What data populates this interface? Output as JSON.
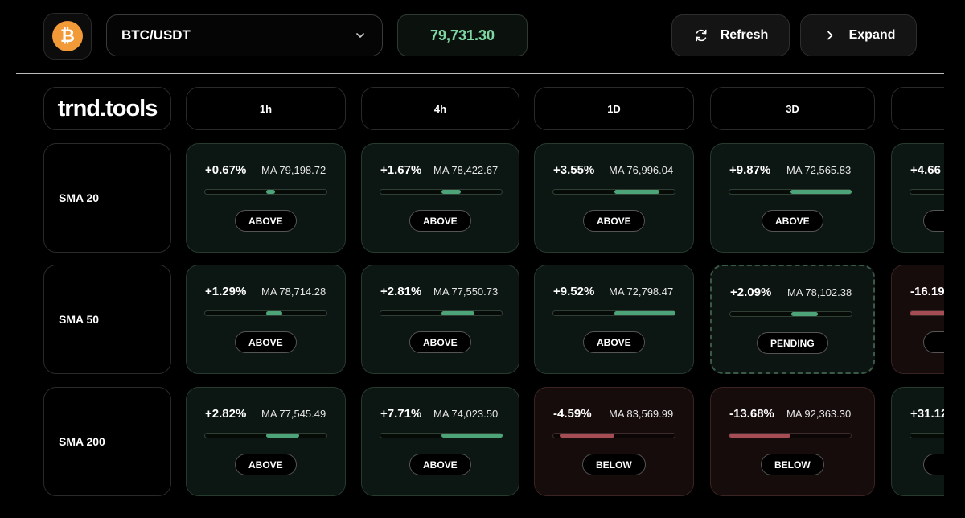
{
  "header": {
    "coin_icon": "bitcoin-icon",
    "coin_symbol": "₿",
    "pair": "BTC/USDT",
    "price": "79,731.30",
    "refresh_label": "Refresh",
    "expand_label": "Expand"
  },
  "brand": "trnd.tools",
  "timeframes": [
    "1h",
    "4h",
    "1D",
    "3D",
    ""
  ],
  "rows": [
    {
      "label": "SMA 20",
      "cells": [
        {
          "pct": "+0.67%",
          "ma": "MA 79,198.72",
          "status": "ABOVE",
          "dir": "pos",
          "bar_from": 0.5,
          "bar_to": 0.57
        },
        {
          "pct": "+1.67%",
          "ma": "MA 78,422.67",
          "status": "ABOVE",
          "dir": "pos",
          "bar_from": 0.5,
          "bar_to": 0.66
        },
        {
          "pct": "+3.55%",
          "ma": "MA 76,996.04",
          "status": "ABOVE",
          "dir": "pos",
          "bar_from": 0.5,
          "bar_to": 0.87
        },
        {
          "pct": "+9.87%",
          "ma": "MA 72,565.83",
          "status": "ABOVE",
          "dir": "pos",
          "bar_from": 0.5,
          "bar_to": 1.0
        },
        {
          "pct": "+4.66",
          "ma": "",
          "status": "",
          "dir": "pos",
          "bar_from": 0.5,
          "bar_to": 1.0
        }
      ]
    },
    {
      "label": "SMA 50",
      "cells": [
        {
          "pct": "+1.29%",
          "ma": "MA 78,714.28",
          "status": "ABOVE",
          "dir": "pos",
          "bar_from": 0.5,
          "bar_to": 0.63
        },
        {
          "pct": "+2.81%",
          "ma": "MA 77,550.73",
          "status": "ABOVE",
          "dir": "pos",
          "bar_from": 0.5,
          "bar_to": 0.77
        },
        {
          "pct": "+9.52%",
          "ma": "MA 72,798.47",
          "status": "ABOVE",
          "dir": "pos",
          "bar_from": 0.5,
          "bar_to": 1.0
        },
        {
          "pct": "+2.09%",
          "ma": "MA 78,102.38",
          "status": "PENDING",
          "dir": "pending",
          "bar_from": 0.5,
          "bar_to": 0.72
        },
        {
          "pct": "-16.19",
          "ma": "",
          "status": "",
          "dir": "neg",
          "bar_from": 0.0,
          "bar_to": 0.5
        }
      ]
    },
    {
      "label": "SMA 200",
      "cells": [
        {
          "pct": "+2.82%",
          "ma": "MA 77,545.49",
          "status": "ABOVE",
          "dir": "pos",
          "bar_from": 0.5,
          "bar_to": 0.77
        },
        {
          "pct": "+7.71%",
          "ma": "MA 74,023.50",
          "status": "ABOVE",
          "dir": "pos",
          "bar_from": 0.5,
          "bar_to": 1.0
        },
        {
          "pct": "-4.59%",
          "ma": "MA 83,569.99",
          "status": "BELOW",
          "dir": "neg",
          "bar_from": 0.05,
          "bar_to": 0.5
        },
        {
          "pct": "-13.68%",
          "ma": "MA 92,363.30",
          "status": "BELOW",
          "dir": "neg",
          "bar_from": 0.0,
          "bar_to": 0.5
        },
        {
          "pct": "+31.12",
          "ma": "",
          "status": "",
          "dir": "pos",
          "bar_from": 0.5,
          "bar_to": 1.0
        }
      ]
    }
  ],
  "colors": {
    "positive": "#4ea479",
    "negative": "#a64c55",
    "price": "#7fd8a4",
    "coin": "#f29a38"
  }
}
